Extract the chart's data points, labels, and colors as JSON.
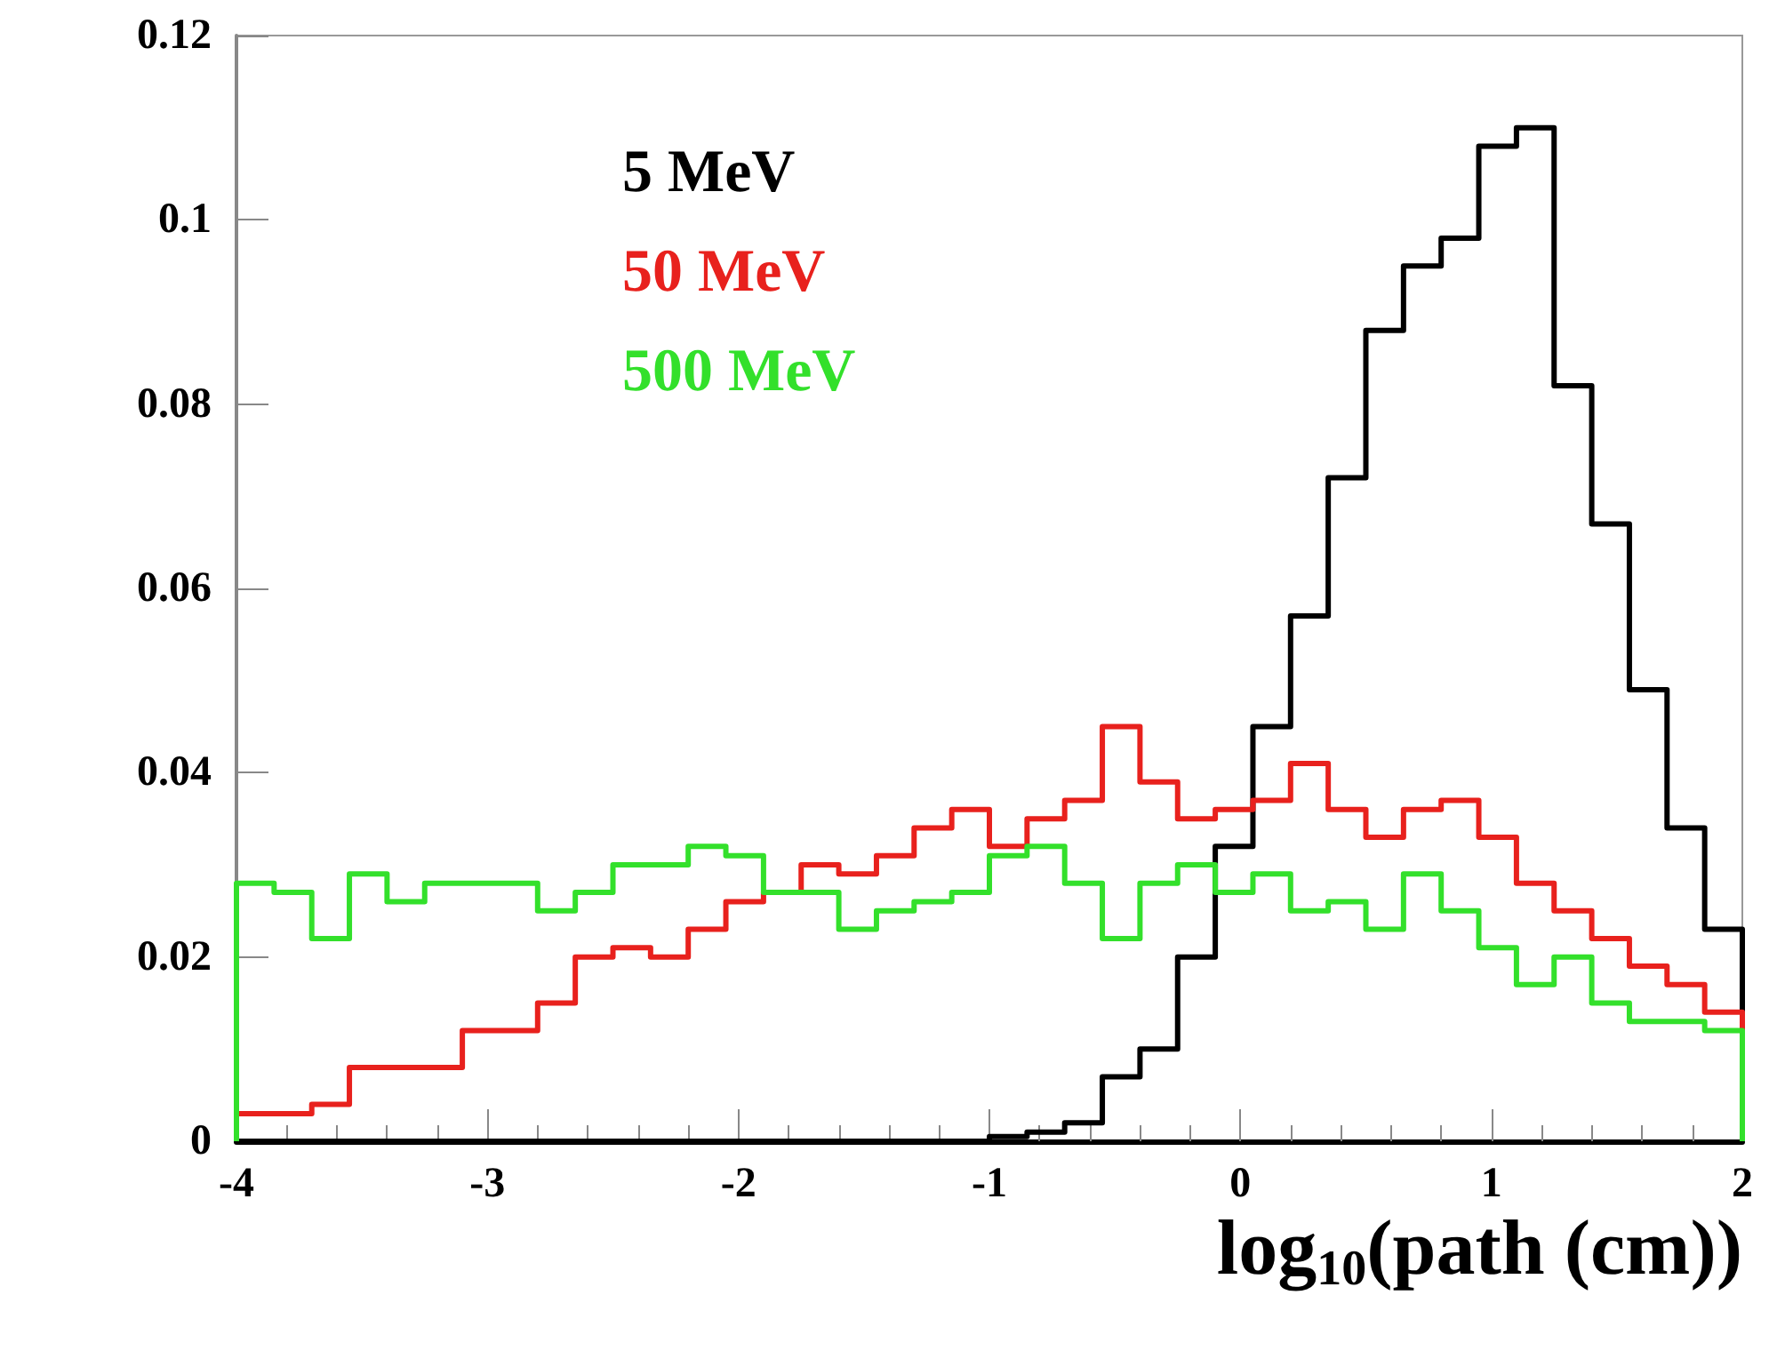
{
  "chart_data": {
    "type": "histogram",
    "xlabel": "log$_{10}$(path (cm))",
    "bins": [
      -4,
      -3.85,
      -3.7,
      -3.55,
      -3.4,
      -3.25,
      -3.1,
      -2.95,
      -2.8,
      -2.65,
      -2.5,
      -2.35,
      -2.2,
      -2.05,
      -1.9,
      -1.75,
      -1.6,
      -1.45,
      -1.3,
      -1.15,
      -1,
      -0.85,
      -0.7,
      -0.55,
      -0.4,
      -0.25,
      -0.1,
      0.05,
      0.2,
      0.35,
      0.5,
      0.65,
      0.8,
      0.95,
      1.1,
      1.25,
      1.4,
      1.55,
      1.7,
      1.85,
      2
    ],
    "series": [
      {
        "name": "5 MeV",
        "color": "#000000",
        "values": [
          0,
          0,
          0,
          0,
          0,
          0,
          0,
          0,
          0,
          0,
          0,
          0,
          0,
          0,
          0,
          0,
          0,
          0,
          0,
          0,
          0.0005,
          0.001,
          0.002,
          0.007,
          0.01,
          0.02,
          0.032,
          0.045,
          0.057,
          0.072,
          0.088,
          0.095,
          0.098,
          0.108,
          0.11,
          0.082,
          0.067,
          0.049,
          0.034,
          0.023
        ]
      },
      {
        "name": "50 MeV",
        "color": "#e8211d",
        "values": [
          0.003,
          0.003,
          0.004,
          0.008,
          0.008,
          0.008,
          0.012,
          0.012,
          0.015,
          0.02,
          0.021,
          0.02,
          0.023,
          0.026,
          0.027,
          0.03,
          0.029,
          0.031,
          0.034,
          0.036,
          0.032,
          0.035,
          0.037,
          0.045,
          0.039,
          0.035,
          0.036,
          0.037,
          0.041,
          0.036,
          0.033,
          0.036,
          0.037,
          0.033,
          0.028,
          0.025,
          0.022,
          0.019,
          0.017,
          0.014
        ]
      },
      {
        "name": "500 MeV",
        "color": "#33e02b",
        "values": [
          0.028,
          0.027,
          0.022,
          0.029,
          0.026,
          0.028,
          0.028,
          0.028,
          0.025,
          0.027,
          0.03,
          0.03,
          0.032,
          0.031,
          0.027,
          0.027,
          0.023,
          0.025,
          0.026,
          0.027,
          0.031,
          0.032,
          0.028,
          0.022,
          0.028,
          0.03,
          0.027,
          0.029,
          0.025,
          0.026,
          0.023,
          0.029,
          0.025,
          0.021,
          0.017,
          0.02,
          0.015,
          0.013,
          0.013,
          0.012
        ]
      }
    ],
    "xlim": [
      -4,
      2
    ],
    "xticks": [
      -4,
      -3,
      -2,
      -1,
      0,
      1,
      2
    ],
    "ylim": [
      0,
      0.12
    ],
    "yticks": [
      0,
      0.02,
      0.04,
      0.06,
      0.08,
      0.1,
      0.12
    ],
    "legend": "top left",
    "grid": false
  }
}
